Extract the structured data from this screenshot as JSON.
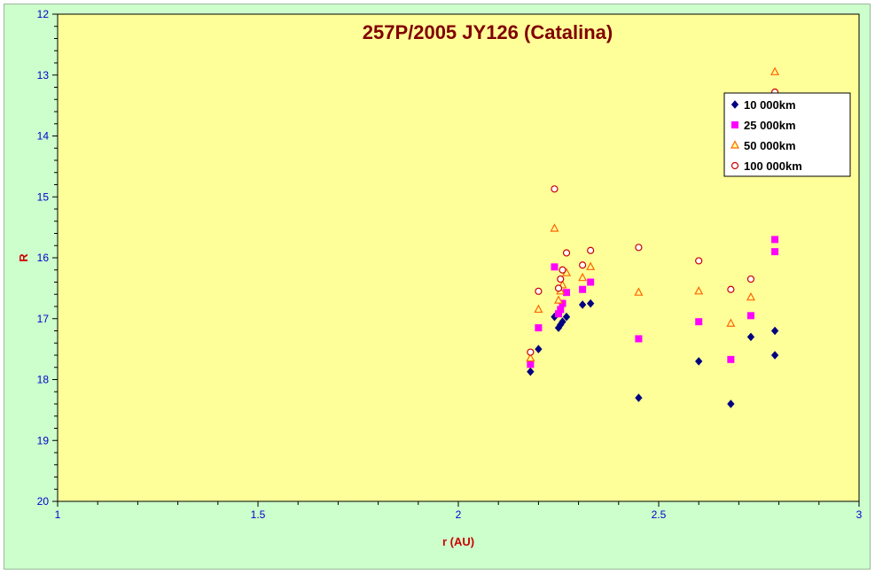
{
  "chart_data": {
    "type": "scatter",
    "title": "257P/2005 JY126 (Catalina)",
    "xlabel": "r (AU)",
    "ylabel": "R",
    "xlim": [
      1,
      3
    ],
    "ylim": [
      12,
      20
    ],
    "y_inverted": true,
    "x_ticks": [
      "1",
      "1.5",
      "2",
      "2.5",
      "3"
    ],
    "y_ticks": [
      "12",
      "13",
      "14",
      "15",
      "16",
      "17",
      "18",
      "19",
      "20"
    ],
    "grid": false,
    "legend_position": "top-right",
    "plot_background": "#ffff99",
    "chart_background": "#ccffcc",
    "series": [
      {
        "name": "10 000km",
        "marker": "diamond",
        "color": "#000080",
        "points": [
          [
            2.18,
            17.87
          ],
          [
            2.2,
            17.5
          ],
          [
            2.24,
            16.97
          ],
          [
            2.25,
            17.15
          ],
          [
            2.255,
            17.1
          ],
          [
            2.26,
            17.05
          ],
          [
            2.27,
            16.97
          ],
          [
            2.31,
            16.77
          ],
          [
            2.33,
            16.75
          ],
          [
            2.45,
            18.3
          ],
          [
            2.6,
            17.7
          ],
          [
            2.68,
            18.4
          ],
          [
            2.73,
            17.3
          ],
          [
            2.79,
            17.2
          ],
          [
            2.79,
            17.6
          ]
        ]
      },
      {
        "name": "25 000km",
        "marker": "square",
        "color": "#ff00ff",
        "points": [
          [
            2.18,
            17.75
          ],
          [
            2.2,
            17.15
          ],
          [
            2.24,
            16.15
          ],
          [
            2.25,
            16.92
          ],
          [
            2.255,
            16.85
          ],
          [
            2.26,
            16.75
          ],
          [
            2.27,
            16.57
          ],
          [
            2.31,
            16.52
          ],
          [
            2.33,
            16.4
          ],
          [
            2.45,
            17.33
          ],
          [
            2.6,
            17.05
          ],
          [
            2.68,
            17.67
          ],
          [
            2.73,
            16.95
          ],
          [
            2.79,
            15.7
          ],
          [
            2.79,
            15.9
          ]
        ]
      },
      {
        "name": "50 000km",
        "marker": "triangle",
        "color": "#ff6600",
        "points": [
          [
            2.18,
            17.65
          ],
          [
            2.2,
            16.85
          ],
          [
            2.24,
            15.52
          ],
          [
            2.25,
            16.7
          ],
          [
            2.255,
            16.55
          ],
          [
            2.26,
            16.45
          ],
          [
            2.27,
            16.25
          ],
          [
            2.31,
            16.33
          ],
          [
            2.33,
            16.15
          ],
          [
            2.45,
            16.57
          ],
          [
            2.6,
            16.55
          ],
          [
            2.68,
            17.08
          ],
          [
            2.73,
            16.65
          ],
          [
            2.79,
            12.95
          ]
        ]
      },
      {
        "name": "100 000km",
        "marker": "circle",
        "color": "#cc0000",
        "points": [
          [
            2.18,
            17.55
          ],
          [
            2.2,
            16.55
          ],
          [
            2.24,
            14.87
          ],
          [
            2.25,
            16.5
          ],
          [
            2.255,
            16.35
          ],
          [
            2.26,
            16.2
          ],
          [
            2.27,
            15.92
          ],
          [
            2.31,
            16.12
          ],
          [
            2.33,
            15.88
          ],
          [
            2.45,
            15.83
          ],
          [
            2.6,
            16.05
          ],
          [
            2.68,
            16.52
          ],
          [
            2.73,
            16.35
          ],
          [
            2.79,
            13.28
          ]
        ]
      }
    ]
  }
}
